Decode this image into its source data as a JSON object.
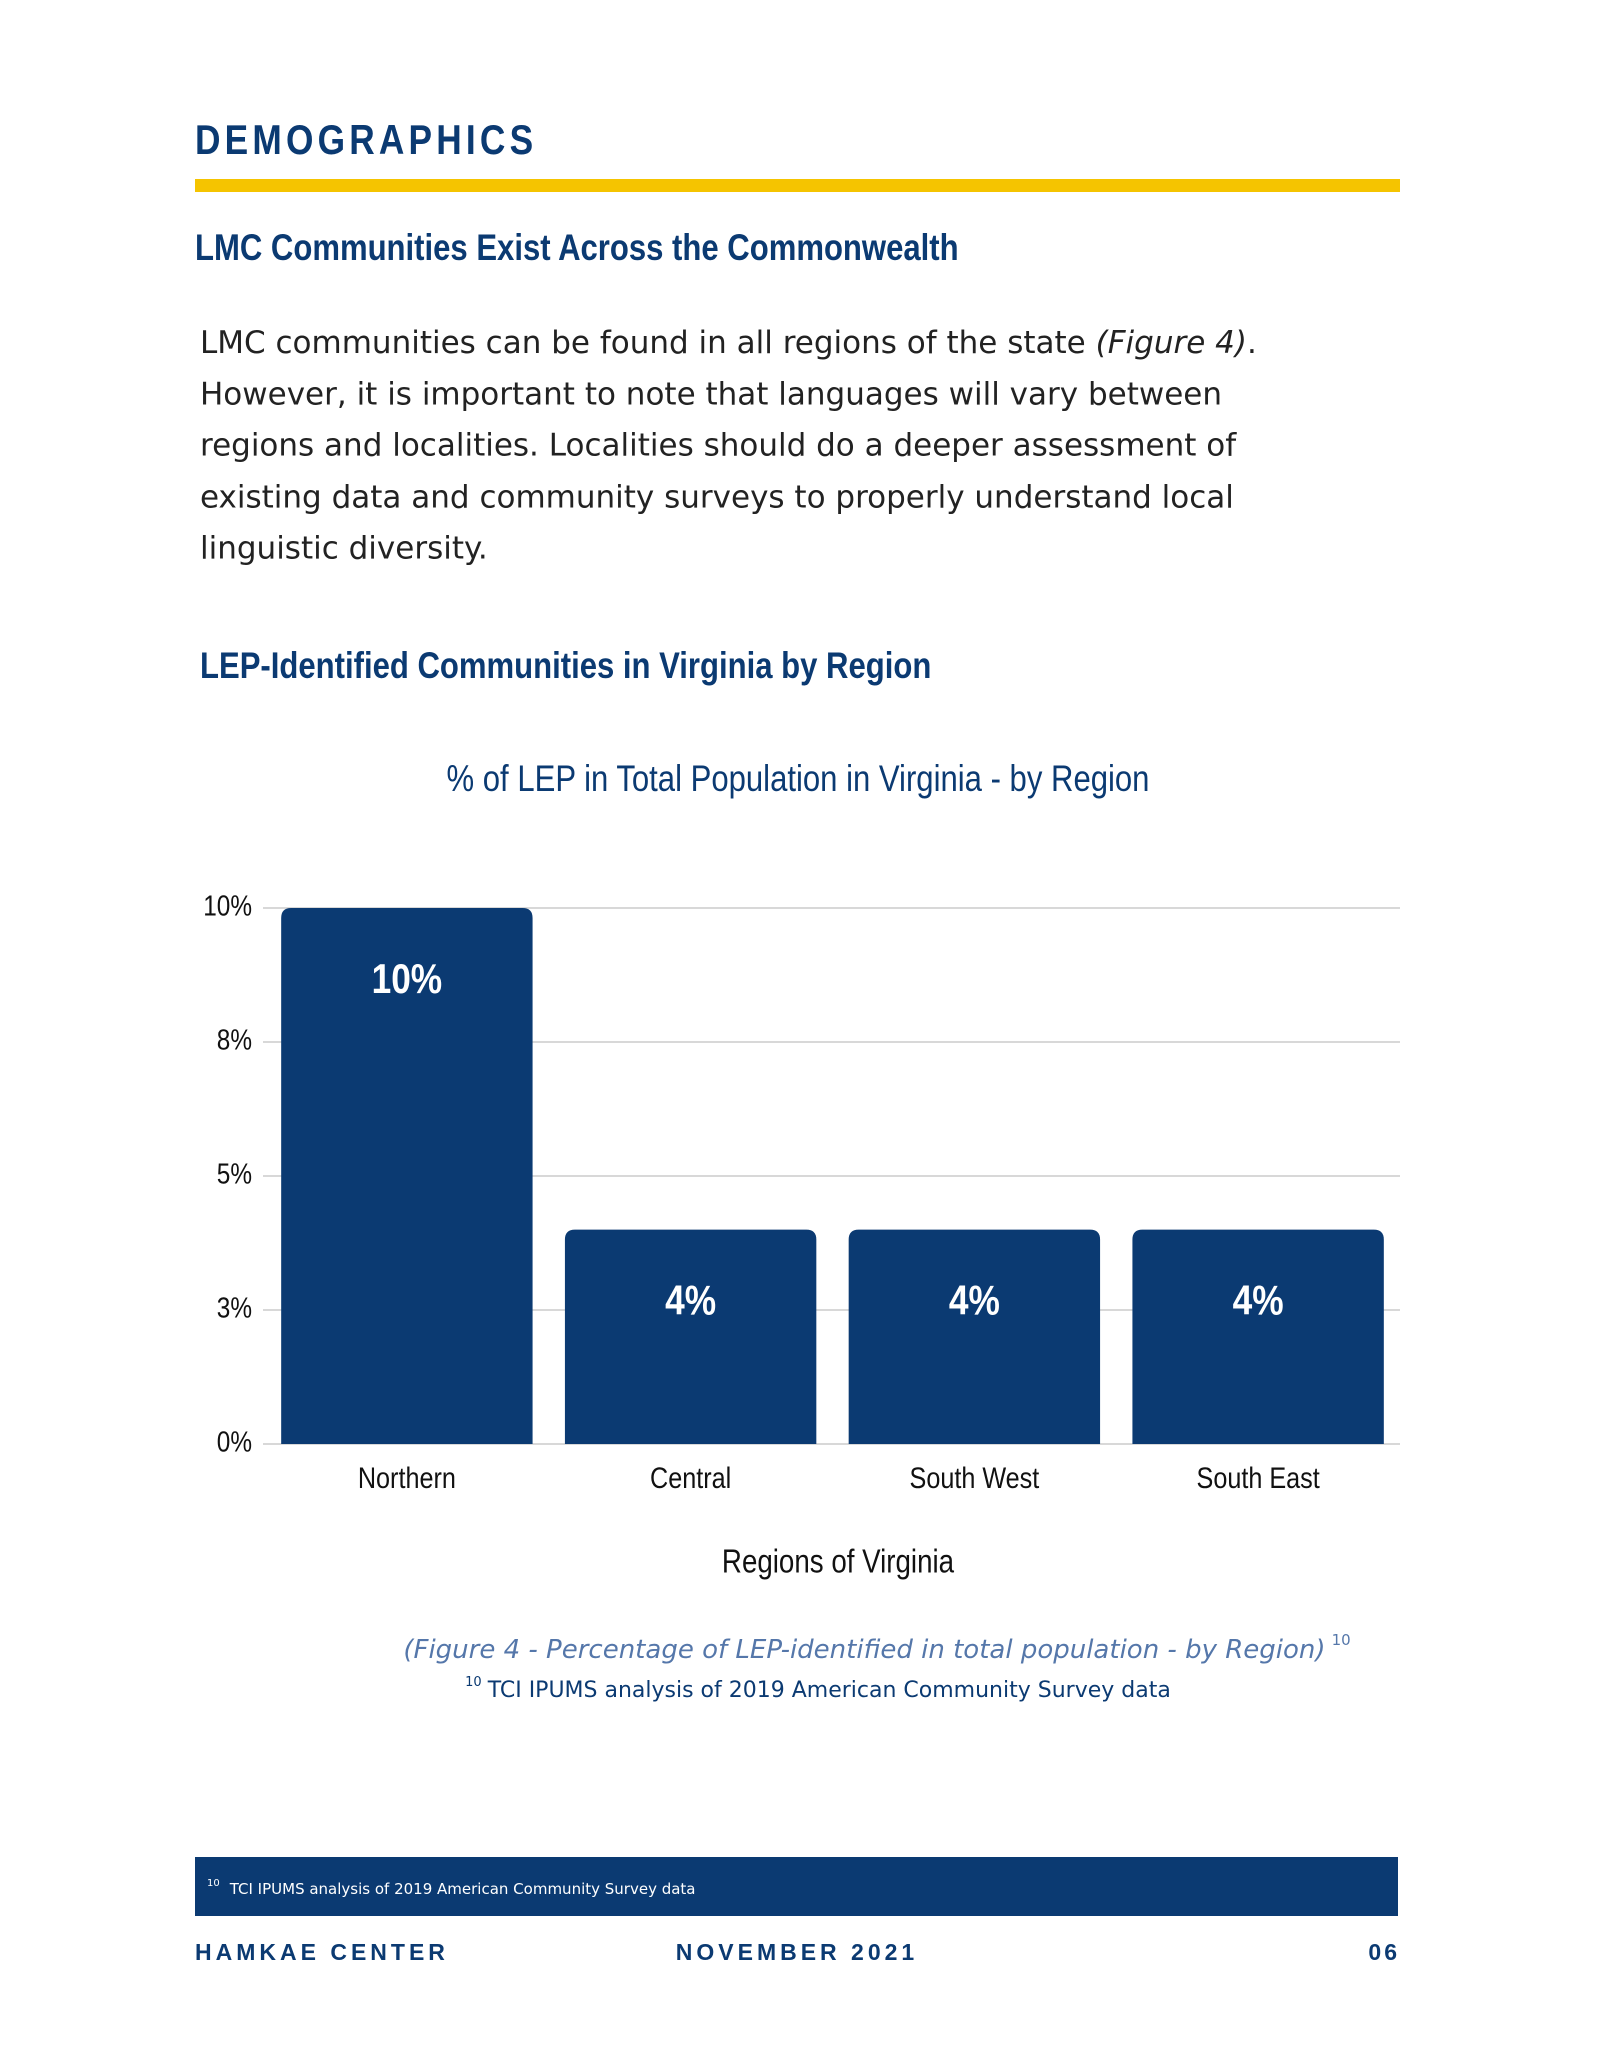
{
  "header": {
    "section": "DEMOGRAPHICS",
    "subtitle": "LMC Communities Exist Across the Commonwealth"
  },
  "paragraph": [
    [
      "LMC communities can be found in all regions of the state ",
      "(Figure 4)",
      "."
    ],
    [
      "However, it is important to note that languages will vary between"
    ],
    [
      "regions and localities. Localities should do a deeper assessment of"
    ],
    [
      "existing data and community surveys to properly understand local"
    ],
    [
      "linguistic diversity."
    ]
  ],
  "chart_heading": "LEP-Identified Communities in Virginia by Region",
  "chart_data": {
    "type": "bar",
    "title": "% of LEP in Total Population in Virginia - by Region",
    "x_label": "Regions of Virginia",
    "categories": [
      "Northern",
      "Central",
      "South West",
      "South East"
    ],
    "values": [
      10,
      4,
      4,
      4
    ],
    "value_labels": [
      "10%",
      "4%",
      "4%",
      "4%"
    ],
    "color": "#0b3a72",
    "ylim": [
      0,
      10
    ],
    "yticks": [
      {
        "value": 0,
        "label": "0%"
      },
      {
        "value": 2.5,
        "label": "3%"
      },
      {
        "value": 5,
        "label": "5%"
      },
      {
        "value": 7.5,
        "label": "8%"
      },
      {
        "value": 10,
        "label": "10%"
      }
    ],
    "grid": true
  },
  "caption": {
    "text": "(Figure 4 - Percentage of LEP-identified in total population - by Region)",
    "note": "10"
  },
  "source": {
    "note": "10",
    "text": "TCI IPUMS analysis of 2019 American Community Survey data"
  },
  "footnote": {
    "note": "10",
    "text": "TCI IPUMS analysis of 2019 American Community Survey data"
  },
  "footer": {
    "left": "HAMKAE CENTER",
    "center": "NOVEMBER 2021",
    "right": "06"
  }
}
